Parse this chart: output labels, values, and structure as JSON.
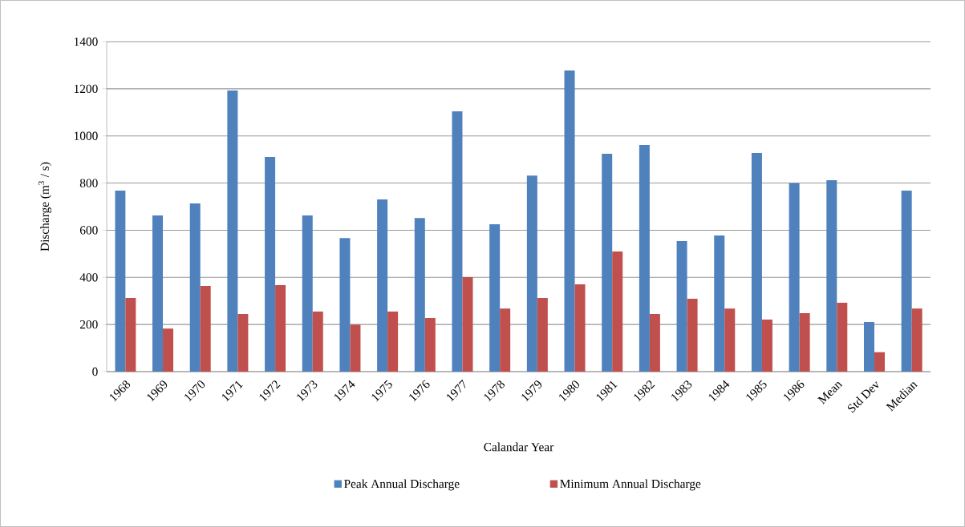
{
  "chart_data": {
    "type": "bar",
    "xlabel": "Calandar Year",
    "ylabel": "Discharge (m$^{3}$ / s)",
    "categories": [
      "1968",
      "1969",
      "1970",
      "1971",
      "1972",
      "1973",
      "1974",
      "1975",
      "1976",
      "1977",
      "1978",
      "1979",
      "1980",
      "1981",
      "1982",
      "1983",
      "1984",
      "1985",
      "1986",
      "Mean",
      "Std Dev",
      "Median"
    ],
    "series": [
      {
        "name": "Peak Annual Discharge",
        "color": "#4f81bd",
        "values": [
          768,
          663,
          714,
          1193,
          911,
          663,
          567,
          731,
          652,
          1104,
          625,
          832,
          1278,
          924,
          962,
          554,
          578,
          928,
          799,
          812,
          211,
          768
        ]
      },
      {
        "name": "Minimum Annual Discharge",
        "color": "#c0504d",
        "values": [
          313,
          183,
          364,
          245,
          367,
          255,
          200,
          255,
          228,
          401,
          268,
          313,
          370,
          510,
          245,
          309,
          268,
          221,
          248,
          292,
          82,
          268
        ]
      }
    ],
    "ylim": [
      0,
      1400
    ],
    "yticks": [
      0,
      200,
      400,
      600,
      800,
      1000,
      1200,
      1400
    ],
    "grid": "y",
    "legend": "bottom"
  }
}
